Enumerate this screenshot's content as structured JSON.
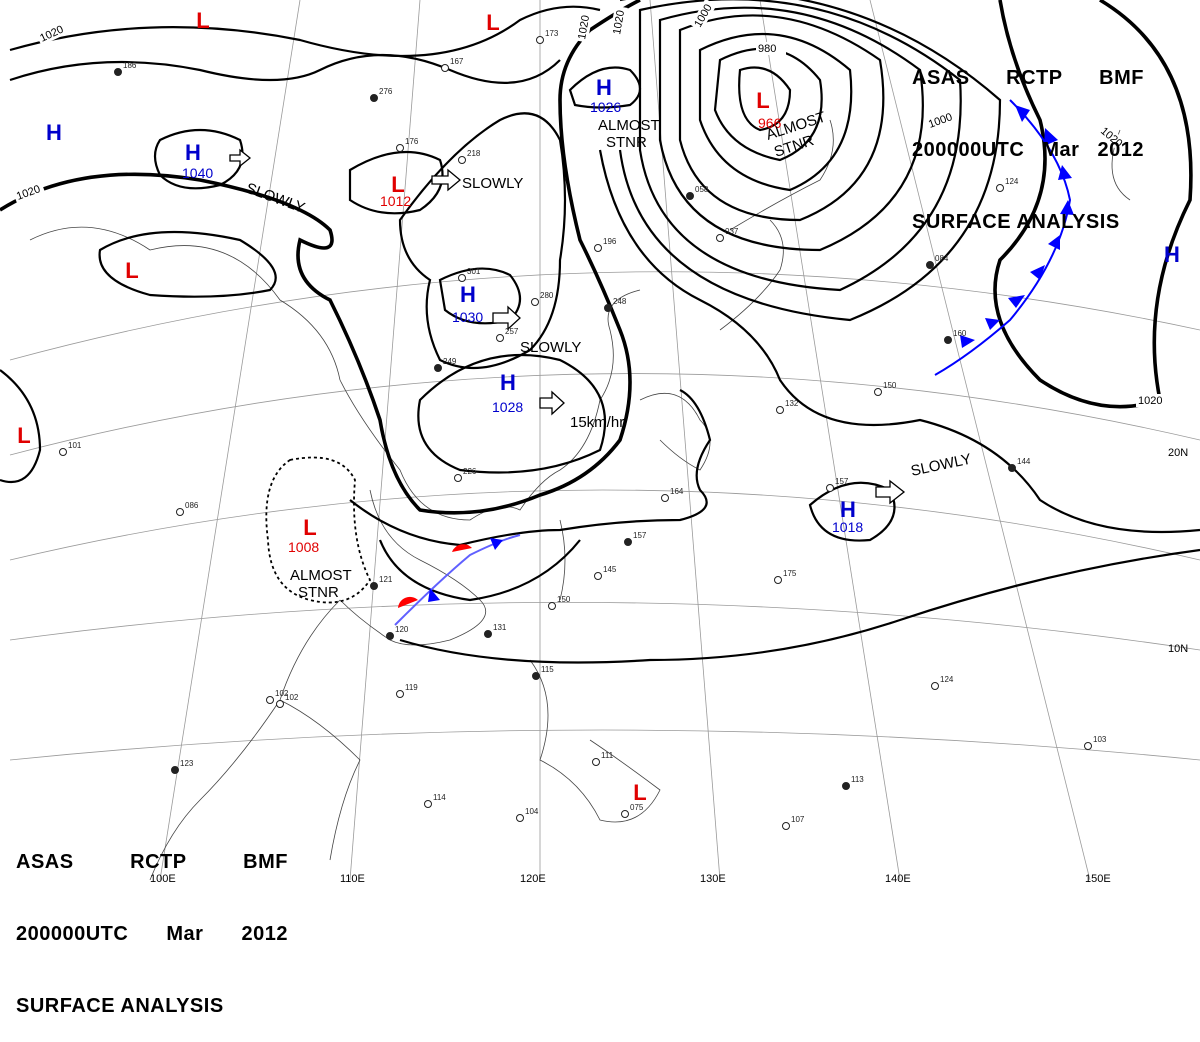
{
  "header": {
    "line1": [
      "ASAS",
      "RCTP",
      "BMF"
    ],
    "line2": [
      "200000UTC",
      "Mar",
      "2012"
    ],
    "line3": "SURFACE ANALYSIS"
  },
  "colors": {
    "high": "#0000cc",
    "low": "#e00000",
    "front_cold": "#0000ff",
    "front_warm": "#ff0000",
    "isobar": "#000000"
  },
  "isobar_labels": [
    "1020",
    "1020",
    "1020",
    "1020",
    "1000",
    "980",
    "1000",
    "1020",
    "1020"
  ],
  "pressure_systems": [
    {
      "type": "H",
      "value": "1040"
    },
    {
      "type": "H",
      "value": ""
    },
    {
      "type": "H",
      "value": "1026"
    },
    {
      "type": "H",
      "value": "1030"
    },
    {
      "type": "H",
      "value": "1028"
    },
    {
      "type": "H",
      "value": "1018"
    },
    {
      "type": "H",
      "value": ""
    },
    {
      "type": "L",
      "value": "966"
    },
    {
      "type": "L",
      "value": "1012"
    },
    {
      "type": "L",
      "value": "1008"
    },
    {
      "type": "L",
      "value": ""
    },
    {
      "type": "L",
      "value": ""
    },
    {
      "type": "L",
      "value": ""
    },
    {
      "type": "L",
      "value": ""
    },
    {
      "type": "L",
      "value": ""
    }
  ],
  "motion_labels": [
    "SLOWLY",
    "SLOWLY",
    "SLOWLY",
    "SLOWLY",
    "15km/hr",
    "ALMOST\nSTNR",
    "ALMOST\nSTNR",
    "ALMOST\nSTNR"
  ],
  "longitude_labels": [
    "100E",
    "110E",
    "120E",
    "130E",
    "140E",
    "150E"
  ],
  "latitude_labels": [
    "20N",
    "10N"
  ],
  "station_samples": [
    "186",
    "167",
    "173",
    "276",
    "176",
    "218",
    "121",
    "301",
    "280",
    "248",
    "196",
    "257",
    "249",
    "226",
    "164",
    "157",
    "145",
    "150",
    "131",
    "119",
    "102",
    "123",
    "114",
    "104",
    "115",
    "111",
    "107",
    "113",
    "103",
    "124",
    "160",
    "157",
    "175",
    "144",
    "132",
    "150",
    "084",
    "101",
    "086",
    "120",
    "102",
    "075",
    "058",
    "037",
    "124"
  ]
}
